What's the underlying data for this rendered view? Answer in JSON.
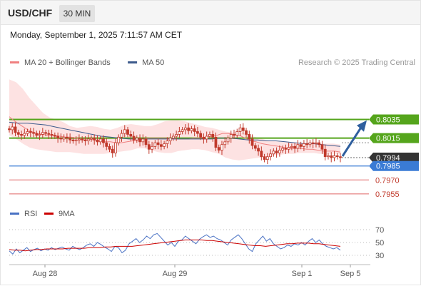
{
  "header": {
    "symbol": "USD/CHF",
    "timeframe": "30 MIN"
  },
  "datetime": "Monday, September 1, 2025 7:11:57 AM CET",
  "colors": {
    "bollinger_fill": "#fde2e2",
    "ma20": "#f08080",
    "ma50": "#3c5a8c",
    "candle": "#c0392b",
    "resistance": "#55a51c",
    "support": "#3a7bd5",
    "pivot_low": "#e06666",
    "current": "#333333",
    "rsi": "#4a72c4",
    "rsi_ma": "#cc0000",
    "arrow": "#2f5f9e"
  },
  "chart_data": [
    {
      "type": "candlestick",
      "legend": [
        {
          "label": "MA 20 + Bollinger Bands",
          "color": "#f08080"
        },
        {
          "label": "MA 50",
          "color": "#3c5a8c"
        }
      ],
      "watermark": "Research © 2025 Trading Central",
      "ylim": [
        0.7948,
        0.8086
      ],
      "x_ticks": [
        "Aug 28",
        "Aug 29",
        "Sep 1",
        "Sep 5"
      ],
      "candles": [
        0.8024,
        0.8027,
        0.8021,
        0.8019,
        0.8018,
        0.802,
        0.8022,
        0.8021,
        0.802,
        0.8018,
        0.8019,
        0.8021,
        0.802,
        0.8019,
        0.8018,
        0.8017,
        0.8015,
        0.8014,
        0.8016,
        0.8015,
        0.8013,
        0.8012,
        0.8013,
        0.8014,
        0.8013,
        0.8012,
        0.8014,
        0.8015,
        0.8013,
        0.8011,
        0.8014,
        0.801,
        0.8006,
        0.8003,
        0.7999,
        0.801,
        0.8016,
        0.802,
        0.8024,
        0.8019,
        0.8017,
        0.8013,
        0.8015,
        0.8011,
        0.8014,
        0.8008,
        0.8003,
        0.8006,
        0.801,
        0.8008,
        0.8006,
        0.8009,
        0.8012,
        0.8015,
        0.8017,
        0.8019,
        0.8022,
        0.8024,
        0.8026,
        0.8023,
        0.8025,
        0.8022,
        0.802,
        0.8016,
        0.8014,
        0.8017,
        0.8019,
        0.8016,
        0.8005,
        0.8002,
        0.8008,
        0.8011,
        0.8015,
        0.8019,
        0.8018,
        0.8022,
        0.8026,
        0.8023,
        0.8019,
        0.8014,
        0.8007,
        0.8004,
        0.8001,
        0.7995,
        0.7992,
        0.7995,
        0.7998,
        0.8001,
        0.7999,
        0.8002,
        0.8004,
        0.8003,
        0.8005,
        0.8006,
        0.8004,
        0.8008,
        0.8006,
        0.8009,
        0.8008,
        0.801,
        0.8009,
        0.801,
        0.8008,
        0.8003,
        0.7995,
        0.7996,
        0.7994,
        0.7996,
        0.7995,
        0.7994
      ],
      "ma20": [
        0.8038,
        0.8033,
        0.8029,
        0.8025,
        0.8022,
        0.802,
        0.8019,
        0.8018,
        0.8018,
        0.8017,
        0.8016,
        0.8016,
        0.8015,
        0.8014,
        0.8014,
        0.8013,
        0.8012,
        0.8011,
        0.8011,
        0.801,
        0.801,
        0.8011,
        0.8012,
        0.8013,
        0.8014,
        0.8015,
        0.8015,
        0.8015,
        0.8015,
        0.8015,
        0.8014,
        0.8014,
        0.8014,
        0.8015,
        0.8015,
        0.8016,
        0.8017,
        0.8018,
        0.802,
        0.802,
        0.8019,
        0.8018,
        0.8015,
        0.8012,
        0.8011,
        0.8009,
        0.8008,
        0.8007,
        0.8006,
        0.8005,
        0.8004,
        0.8004,
        0.8004,
        0.8003,
        0.8003,
        0.8002,
        0.8001,
        0.8001,
        0.8001,
        0.8
      ],
      "bollinger_upper": [
        0.8078,
        0.8075,
        0.8068,
        0.8058,
        0.805,
        0.8042,
        0.8037,
        0.8035,
        0.8032,
        0.8028,
        0.8026,
        0.8027,
        0.8028,
        0.8027,
        0.8025,
        0.8024,
        0.8026,
        0.8029,
        0.803,
        0.8029,
        0.8028,
        0.8028,
        0.803,
        0.8033,
        0.8034,
        0.8034,
        0.8033,
        0.8031,
        0.8029,
        0.8027,
        0.8026,
        0.8024,
        0.8022,
        0.8021,
        0.8022,
        0.802,
        0.8017,
        0.8015,
        0.8013,
        0.8012,
        0.8011,
        0.8011,
        0.801,
        0.8009,
        0.801,
        0.801,
        0.8009,
        0.8009,
        0.8009,
        0.8008
      ],
      "bollinger_lower": [
        0.8018,
        0.8014,
        0.8009,
        0.8005,
        0.8003,
        0.8002,
        0.8001,
        0.8,
        0.8,
        0.8,
        0.7999,
        0.7998,
        0.7998,
        0.7998,
        0.7998,
        0.7999,
        0.8,
        0.8001,
        0.8002,
        0.8004,
        0.8004,
        0.8002,
        0.8,
        0.7999,
        0.7999,
        0.8001,
        0.8002,
        0.8003,
        0.8003,
        0.8002,
        0.8,
        0.7998,
        0.7994,
        0.7992,
        0.7991,
        0.7992,
        0.7993,
        0.7994,
        0.7995,
        0.7996,
        0.7997,
        0.7998,
        0.7998,
        0.7999,
        0.7999,
        0.7999,
        0.7998,
        0.7998,
        0.7998,
        0.7998
      ],
      "ma50": [
        0.8032,
        0.8031,
        0.8031,
        0.803,
        0.8029,
        0.8027,
        0.8025,
        0.8023,
        0.8021,
        0.8019,
        0.8017,
        0.8016,
        0.8015,
        0.8014,
        0.8014,
        0.8014,
        0.8014,
        0.8014,
        0.8014,
        0.8014,
        0.8014,
        0.8014,
        0.8014,
        0.8015,
        0.8015,
        0.8014,
        0.8013,
        0.8013,
        0.8012,
        0.8012,
        0.8011,
        0.801,
        0.8009,
        0.8009,
        0.8008,
        0.8007,
        0.8006
      ],
      "levels": [
        {
          "value": 0.8035,
          "label": "0.8035",
          "kind": "resistance"
        },
        {
          "value": 0.8015,
          "label": "0.8015",
          "kind": "resistance"
        },
        {
          "value": 0.7994,
          "label": "0.7994",
          "kind": "current"
        },
        {
          "value": 0.7985,
          "label": "0.7985",
          "kind": "support"
        },
        {
          "value": 0.797,
          "label": "0.7970",
          "kind": "pivot_low"
        },
        {
          "value": 0.7955,
          "label": "0.7955",
          "kind": "pivot_low"
        }
      ],
      "arrow": {
        "direction": "up",
        "from": 0.7994,
        "to": 0.8031
      }
    },
    {
      "type": "line",
      "legend": [
        {
          "label": "RSI",
          "color": "#4a72c4"
        },
        {
          "label": "9MA",
          "color": "#cc0000"
        }
      ],
      "ylim": [
        20,
        80
      ],
      "y_ticks": [
        "70",
        "50",
        "30"
      ],
      "series": [
        {
          "name": "RSI",
          "values": [
            37,
            32,
            40,
            34,
            38,
            42,
            36,
            39,
            41,
            37,
            40,
            38,
            42,
            39,
            41,
            43,
            40,
            38,
            44,
            41,
            39,
            42,
            46,
            48,
            44,
            50,
            47,
            43,
            40,
            36,
            44,
            42,
            34,
            38,
            48,
            52,
            56,
            50,
            54,
            60,
            56,
            62,
            64,
            58,
            52,
            46,
            50,
            44,
            52,
            54,
            60,
            56,
            52,
            48,
            55,
            59,
            62,
            58,
            60,
            56,
            54,
            50,
            46,
            54,
            58,
            62,
            56,
            48,
            40,
            36,
            48,
            54,
            60,
            52,
            56,
            48,
            44,
            40,
            42,
            46,
            44,
            48,
            46,
            50,
            46,
            52,
            56,
            50,
            54,
            48,
            44,
            42,
            40,
            42,
            38
          ]
        },
        {
          "name": "9MA",
          "values": [
            39,
            38,
            38,
            37,
            38,
            39,
            39,
            40,
            40,
            40,
            40,
            41,
            41,
            41,
            41,
            42,
            42,
            42,
            43,
            43,
            44,
            44,
            44,
            44,
            45,
            46,
            47,
            48,
            49,
            50,
            51,
            52,
            53,
            54,
            54,
            54,
            54,
            53,
            53,
            52,
            51,
            50,
            49,
            48,
            47,
            46,
            45,
            45,
            44,
            45,
            46,
            47,
            48,
            48,
            49,
            49,
            49,
            48,
            48,
            47,
            46,
            45,
            44
          ]
        }
      ]
    }
  ]
}
